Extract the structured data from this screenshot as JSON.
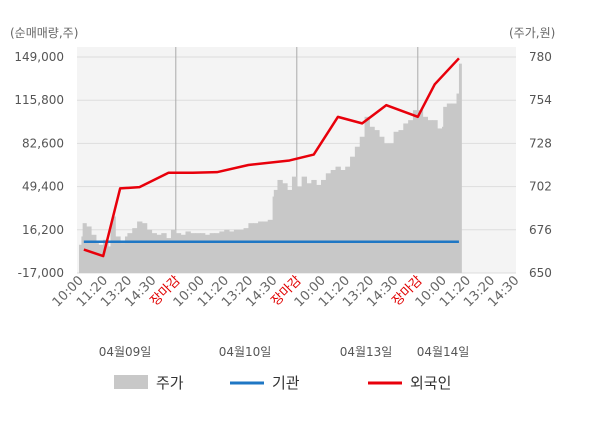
{
  "chart_data": {
    "type": "area+line",
    "left_unit": "(순매매량,주)",
    "right_unit": "(주가,원)",
    "left_ticks": [
      "149,000",
      "115,800",
      "82,600",
      "49,400",
      "16,200",
      "-17,000"
    ],
    "left_ylim": [
      -17000,
      149000
    ],
    "right_ticks": [
      "780",
      "754",
      "728",
      "702",
      "676",
      "650"
    ],
    "right_ylim": [
      650,
      780
    ],
    "x_tick_labels": [
      "10:00",
      "11:20",
      "13:20",
      "14:30",
      "장마감",
      "10:00",
      "11:20",
      "13:20",
      "14:30",
      "장마감",
      "10:00",
      "11:20",
      "13:20",
      "14:30",
      "장마감",
      "10:00",
      "11:20",
      "13:20",
      "14:30"
    ],
    "x_tick_red": [
      false,
      false,
      false,
      false,
      true,
      false,
      false,
      false,
      false,
      true,
      false,
      false,
      false,
      false,
      true,
      false,
      false,
      false,
      false
    ],
    "dates": [
      "04월09일",
      "04월10일",
      "04월13일",
      "04월14일"
    ],
    "legend": [
      "주가",
      "기관",
      "외국인"
    ],
    "colors": {
      "price": "#c8c8c8",
      "institution": "#1f77c4",
      "foreign": "#e8000b"
    },
    "series": [
      {
        "name": "외국인",
        "x": [
          0.2,
          1,
          1.7,
          2.5,
          3.7,
          4.7,
          5.7,
          7,
          8.7,
          9.7,
          10.7,
          11.7,
          12.7,
          14,
          14.7,
          15.7
        ],
        "values": [
          1000,
          -4000,
          48000,
          49000,
          60000,
          60000,
          60500,
          66000,
          69500,
          74000,
          103000,
          98000,
          112000,
          103000,
          128000,
          148000
        ]
      },
      {
        "name": "기관",
        "x": [
          0.2,
          15.7
        ],
        "values": [
          7000,
          7000
        ]
      },
      {
        "name": "주가",
        "x": [
          0,
          0.1,
          0.15,
          0.3,
          0.5,
          0.7,
          0.8,
          1,
          1.2,
          1.3,
          1.4,
          1.5,
          1.7,
          1.9,
          2,
          2.2,
          2.4,
          2.6,
          2.8,
          3,
          3.2,
          3.4,
          3.6,
          3.8,
          4,
          4.2,
          4.4,
          4.6,
          4.8,
          5,
          5.2,
          5.4,
          5.6,
          5.8,
          6,
          6.2,
          6.4,
          6.6,
          6.8,
          7,
          7.2,
          7.4,
          7.6,
          7.8,
          8,
          8.05,
          8.2,
          8.4,
          8.6,
          8.8,
          9,
          9.2,
          9.4,
          9.6,
          9.8,
          10,
          10.2,
          10.4,
          10.6,
          10.8,
          11,
          11.2,
          11.4,
          11.6,
          11.8,
          12,
          12.2,
          12.4,
          12.6,
          12.8,
          13,
          13.2,
          13.4,
          13.6,
          13.8,
          14,
          14.2,
          14.4,
          14.6,
          14.8,
          15,
          15.05,
          15.2,
          15.4,
          15.6,
          15.7
        ],
        "values": [
          667,
          672,
          680,
          678,
          673,
          668,
          667,
          670,
          666,
          680,
          684,
          672,
          668,
          672,
          674,
          677,
          681,
          680,
          676,
          674,
          673,
          674,
          671,
          676,
          674,
          673,
          675,
          674,
          674,
          674,
          673,
          674,
          674,
          675,
          676,
          675,
          676,
          676,
          677,
          680,
          680,
          681,
          681,
          682,
          696,
          700,
          706,
          704,
          700,
          708,
          702,
          708,
          704,
          706,
          703,
          706,
          710,
          712,
          714,
          712,
          714,
          720,
          726,
          732,
          744,
          738,
          736,
          732,
          728,
          728,
          735,
          736,
          740,
          742,
          748,
          748,
          744,
          742,
          742,
          737,
          738,
          750,
          752,
          752,
          758,
          776
        ]
      }
    ]
  }
}
